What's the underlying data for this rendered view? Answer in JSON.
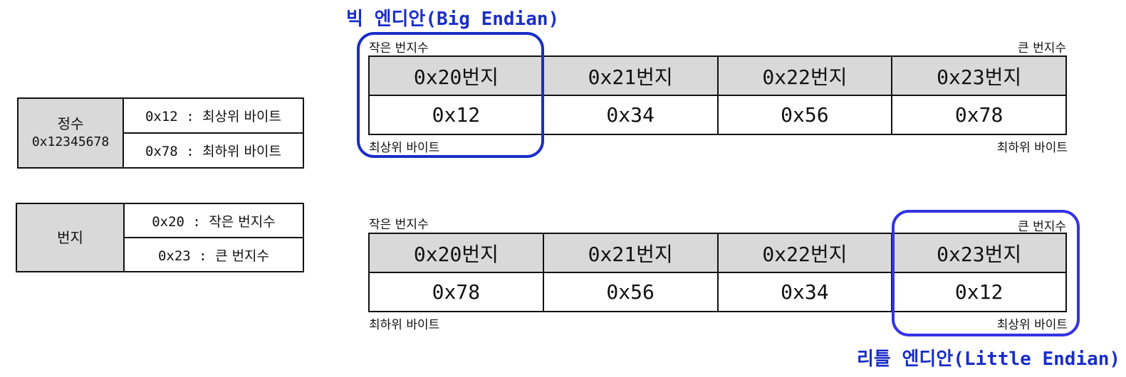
{
  "colors": {
    "big_endian": "#1a2ec8",
    "little_endian": "#3333e6",
    "header_fill": "#d9d9d9"
  },
  "integer_table": {
    "head_label": "정수",
    "head_value": "0x12345678",
    "rows": [
      {
        "hex": "0x12",
        "sep": " : ",
        "desc": "최상위 바이트"
      },
      {
        "hex": "0x78",
        "sep": " : ",
        "desc": "최하위 바이트"
      }
    ]
  },
  "address_table": {
    "head_label": "번지",
    "rows": [
      {
        "hex": "0x20",
        "sep": " : ",
        "desc": "작은 번지수"
      },
      {
        "hex": "0x23",
        "sep": " : ",
        "desc": "큰 번지수"
      }
    ]
  },
  "big_endian": {
    "title": "빅 엔디안(Big Endian)",
    "top_left": "작은 번지수",
    "top_right": "큰 번지수",
    "bottom_left": "최상위 바이트",
    "bottom_right": "최하위 바이트",
    "addresses": [
      "0x20번지",
      "0x21번지",
      "0x22번지",
      "0x23번지"
    ],
    "values": [
      "0x12",
      "0x34",
      "0x56",
      "0x78"
    ]
  },
  "little_endian": {
    "title": "리틀 엔디안(Little Endian)",
    "top_left": "작은 번지수",
    "top_right": "큰 번지수",
    "bottom_left": "최하위 바이트",
    "bottom_right": "최상위 바이트",
    "addresses": [
      "0x20번지",
      "0x21번지",
      "0x22번지",
      "0x23번지"
    ],
    "values": [
      "0x78",
      "0x56",
      "0x34",
      "0x12"
    ]
  }
}
